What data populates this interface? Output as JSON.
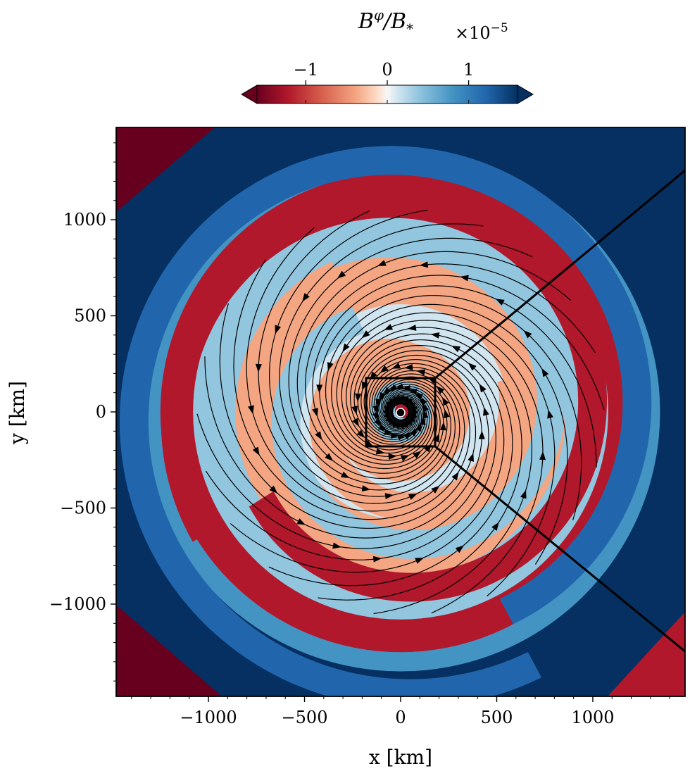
{
  "chart_data": {
    "type": "heatmap",
    "description_field": "B^phi / B_* with magnetic field streamlines",
    "xlabel": "x [km]",
    "ylabel": "y [km]",
    "xlim": [
      -1480,
      1480
    ],
    "ylim": [
      -1480,
      1480
    ],
    "x_ticks": [
      -1000,
      -500,
      0,
      500,
      1000
    ],
    "y_ticks": [
      1000,
      500,
      0,
      -500,
      -1000
    ],
    "x_tick_labels": [
      "−1000",
      "−500",
      "0",
      "500",
      "1000"
    ],
    "y_tick_labels": [
      "1000",
      "500",
      "0",
      "−500",
      "−1000"
    ],
    "colorbar": {
      "title": "B^φ/B_*",
      "title_base": "B",
      "title_sup": "φ",
      "title_mid": "/B",
      "title_sub": "*",
      "exponent_label": "×10",
      "exponent_power": "−5",
      "ticks": [
        -1,
        0,
        1
      ],
      "tick_labels": [
        "−1",
        "0",
        "1"
      ],
      "range": [
        -1.6,
        1.6
      ],
      "colormap": "RdBu",
      "extend": "both"
    },
    "inset_box": {
      "x": [
        -175,
        175
      ],
      "y": [
        -175,
        175
      ]
    },
    "central_star_marker_km": [
      0,
      0
    ],
    "colors": {
      "red_dark": "#67001f",
      "red": "#b2182b",
      "red_mid": "#d6604d",
      "red_light": "#f4a582",
      "red_pale": "#fddbc7",
      "white": "#f7f7f7",
      "blue_pale": "#d1e5f0",
      "blue_light": "#92c5de",
      "blue_mid": "#4393c3",
      "blue": "#2166ac",
      "blue_dark": "#053061"
    }
  }
}
